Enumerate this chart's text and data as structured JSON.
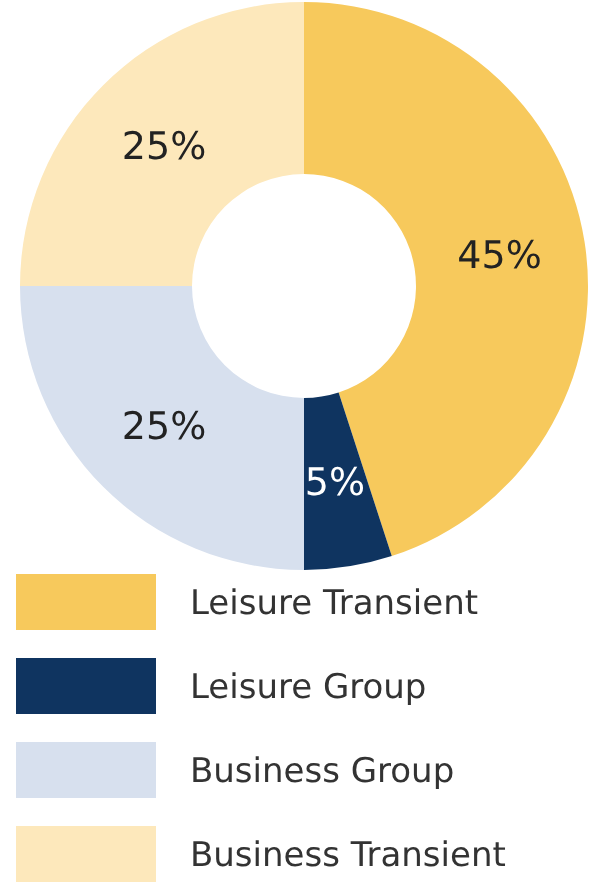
{
  "chart_data": {
    "type": "donut",
    "categories": [
      "Leisure Transient",
      "Leisure Group",
      "Business Group",
      "Business Transient"
    ],
    "values": [
      45,
      5,
      25,
      25
    ],
    "colors": [
      "#f7c95c",
      "#0f3460",
      "#d7e0ee",
      "#fde8bb"
    ],
    "value_labels": [
      "45%",
      "5%",
      "25%",
      "25%"
    ],
    "legend": "bottom"
  }
}
